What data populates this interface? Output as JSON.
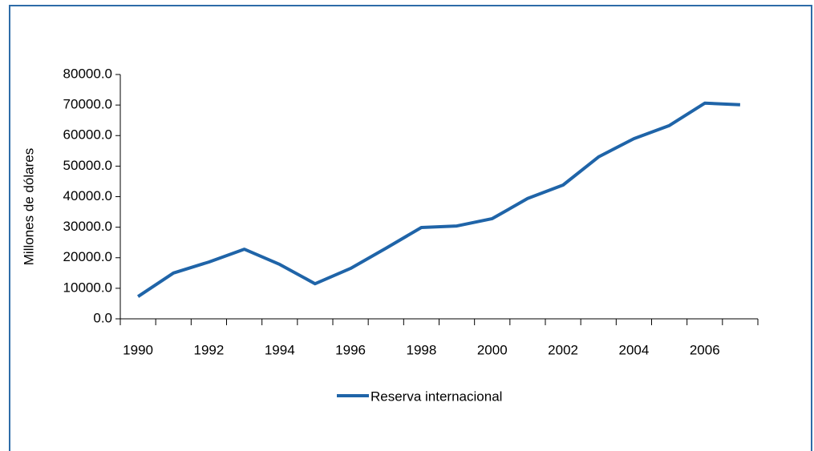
{
  "chart_data": {
    "type": "line",
    "y_label": "Millones de dólares",
    "categories": [
      "1990",
      null,
      "1992",
      null,
      "1994",
      null,
      "1996",
      null,
      "1998",
      null,
      "2000",
      null,
      "2002",
      null,
      "2004",
      null,
      "2006",
      null
    ],
    "series": [
      {
        "name": "Reserva internacional",
        "color": "#1f64a8",
        "values": [
          7300,
          15000,
          18600,
          22800,
          17800,
          11500,
          16500,
          23100,
          29900,
          30400,
          32800,
          39400,
          43800,
          53000,
          59000,
          63300,
          70600,
          70100
        ]
      }
    ],
    "ylim": [
      0,
      80000
    ],
    "yticks": [
      {
        "value": 0,
        "label": "0.0"
      },
      {
        "value": 10000,
        "label": "10000.0"
      },
      {
        "value": 20000,
        "label": "20000.0"
      },
      {
        "value": 30000,
        "label": "30000.0"
      },
      {
        "value": 40000,
        "label": "40000.0"
      },
      {
        "value": 50000,
        "label": "50000.0"
      },
      {
        "value": 60000,
        "label": "60000.0"
      },
      {
        "value": 70000,
        "label": "70000.0"
      },
      {
        "value": 80000,
        "label": "80000.0"
      }
    ],
    "legend": "bottom"
  }
}
